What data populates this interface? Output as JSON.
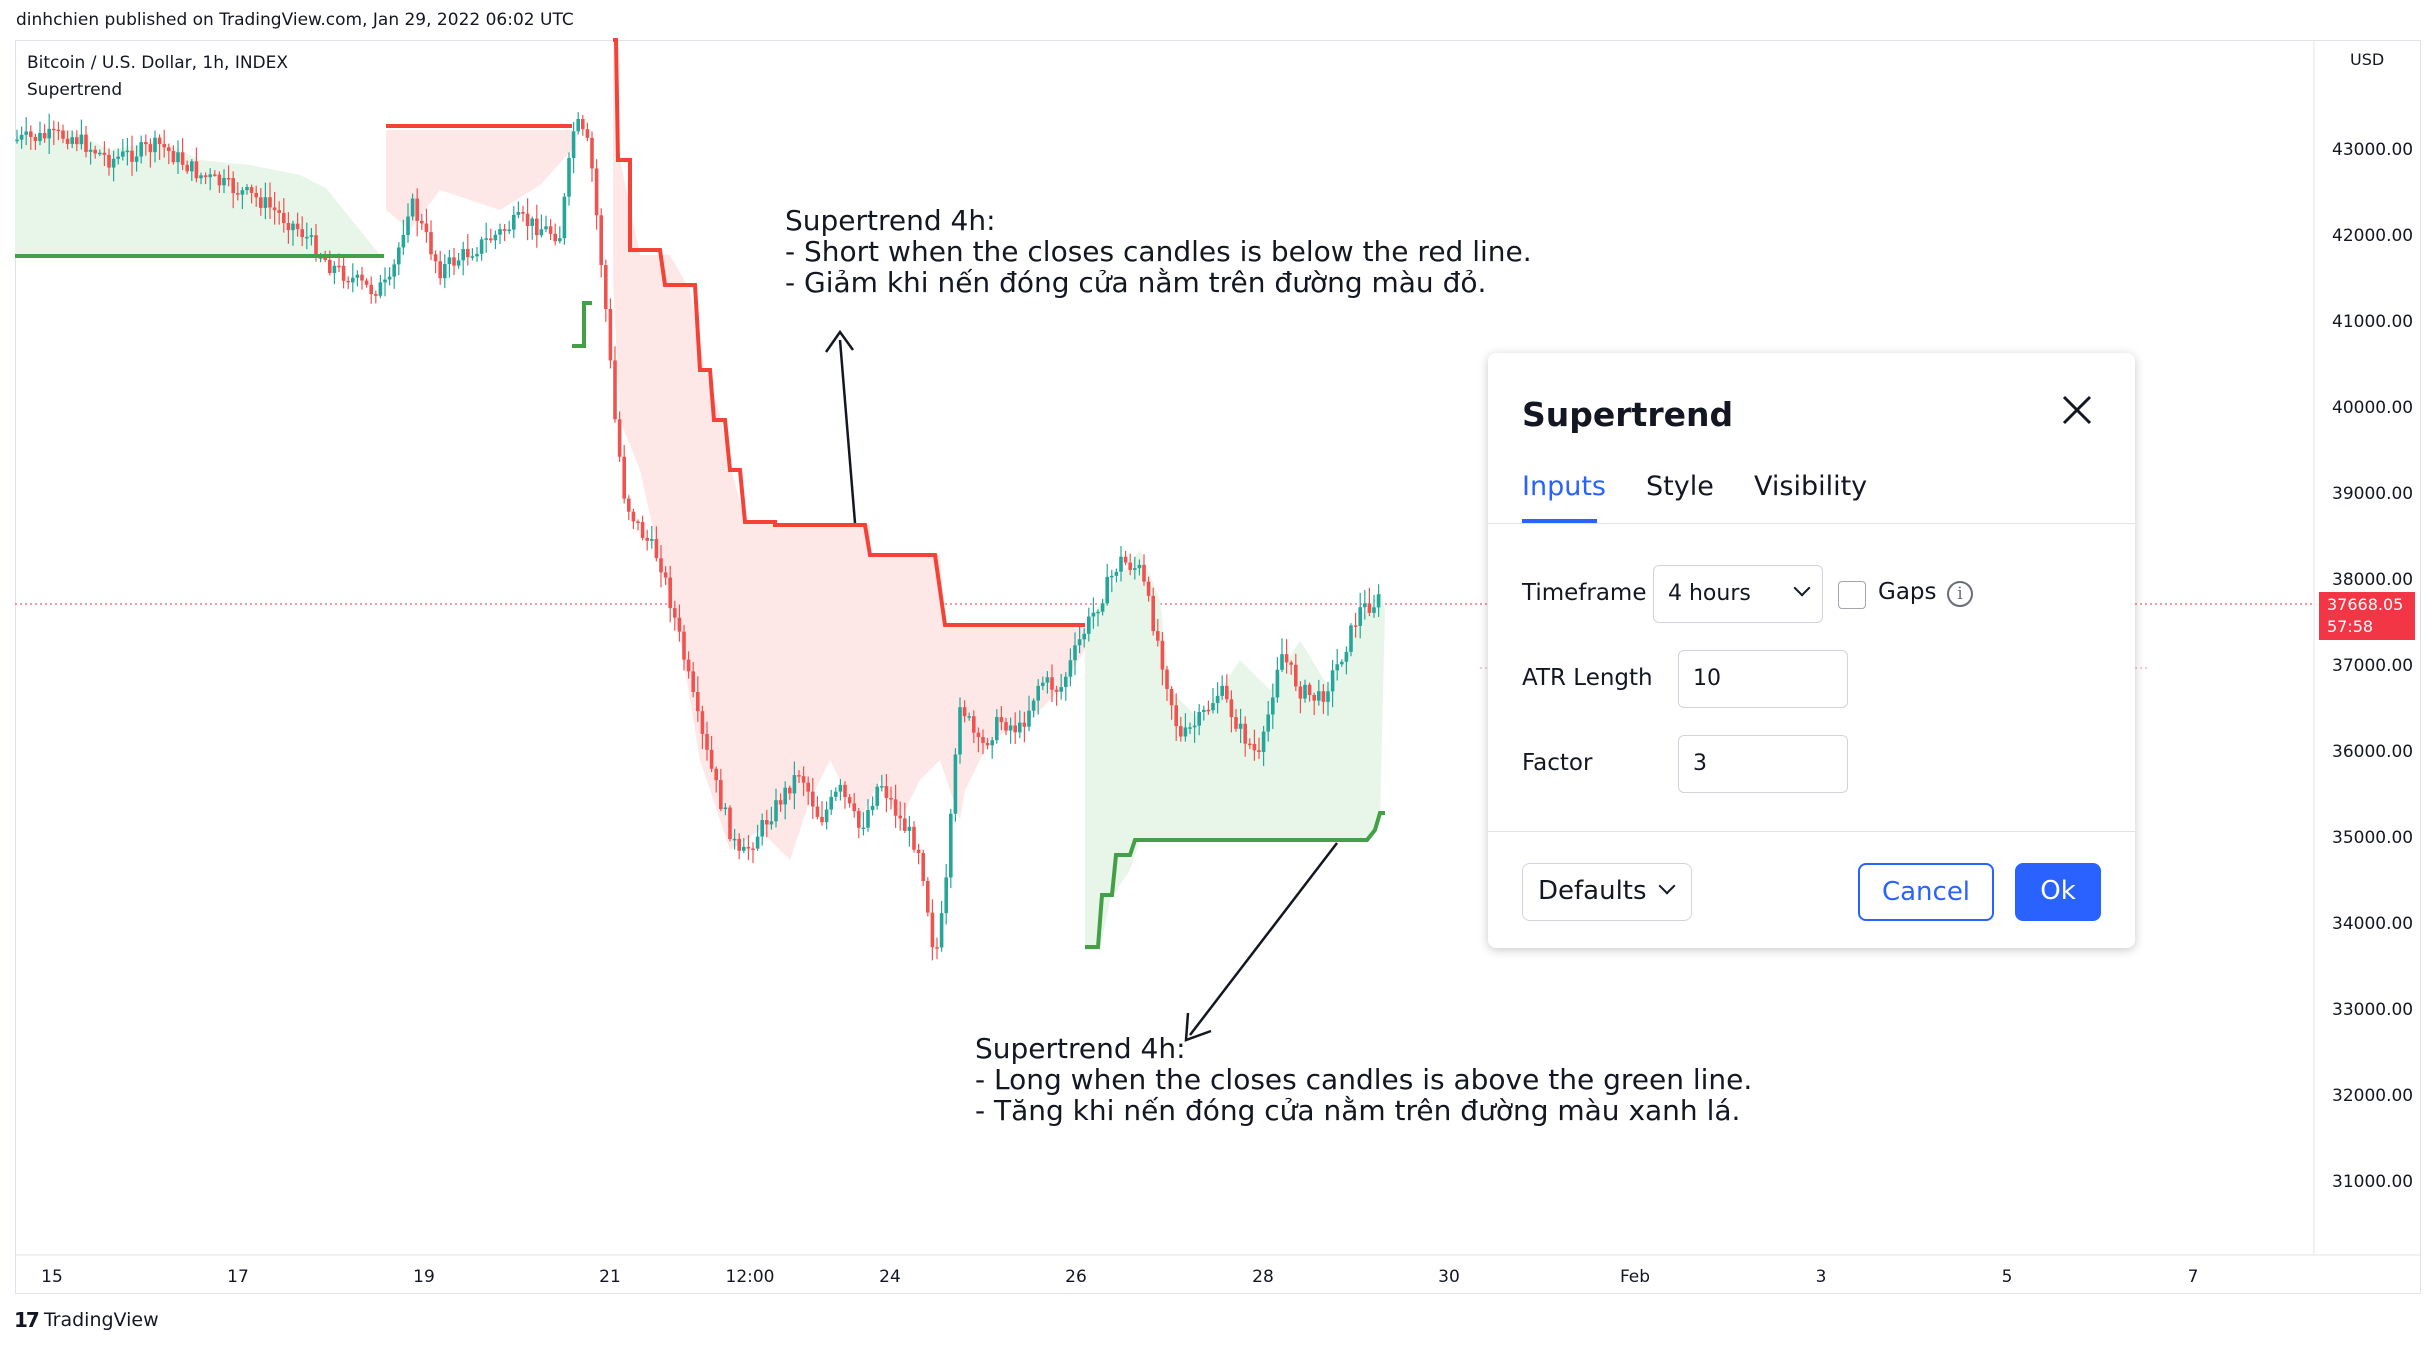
{
  "header": {
    "published": "dinhchien published on TradingView.com, Jan 29, 2022 06:02 UTC"
  },
  "legend": {
    "symbol": "Bitcoin / U.S. Dollar, 1h, INDEX",
    "indicator": "Supertrend"
  },
  "price_axis": {
    "currency": "USD",
    "ticks": [
      "43000.00",
      "42000.00",
      "41000.00",
      "40000.00",
      "39000.00",
      "38000.00",
      "37000.00",
      "36000.00",
      "35000.00",
      "34000.00",
      "33000.00",
      "32000.00",
      "31000.00"
    ],
    "current_price": "37668.05",
    "countdown": "57:58"
  },
  "time_axis": {
    "ticks": [
      "15",
      "17",
      "19",
      "21",
      "12:00",
      "24",
      "26",
      "28",
      "30",
      "Feb",
      "3",
      "5",
      "7"
    ]
  },
  "annotations": {
    "top": "Supertrend 4h:\n- Short when the closes candles is below the red line.\n- Giảm khi nến đóng cửa nằm trên đường màu đỏ.",
    "bottom": "Supertrend 4h:\n- Long when the closes candles is above the green line.\n- Tăng khi nến đóng cửa nằm trên đường màu xanh lá."
  },
  "dialog": {
    "title": "Supertrend",
    "tabs": [
      "Inputs",
      "Style",
      "Visibility"
    ],
    "active_tab": "Inputs",
    "timeframe_label": "Timeframe",
    "timeframe_value": "4 hours",
    "gaps_label": "Gaps",
    "info_glyph": "i",
    "atr_label": "ATR Length",
    "atr_value": "10",
    "factor_label": "Factor",
    "factor_value": "3",
    "defaults_label": "Defaults",
    "cancel_label": "Cancel",
    "ok_label": "Ok"
  },
  "footer": {
    "brand": "TradingView",
    "logo": "17"
  },
  "colors": {
    "up": "#26a69a",
    "down": "#ef5350",
    "supertrend_up": "#43a047",
    "supertrend_down": "#f44336",
    "accent": "#2962ff"
  }
}
